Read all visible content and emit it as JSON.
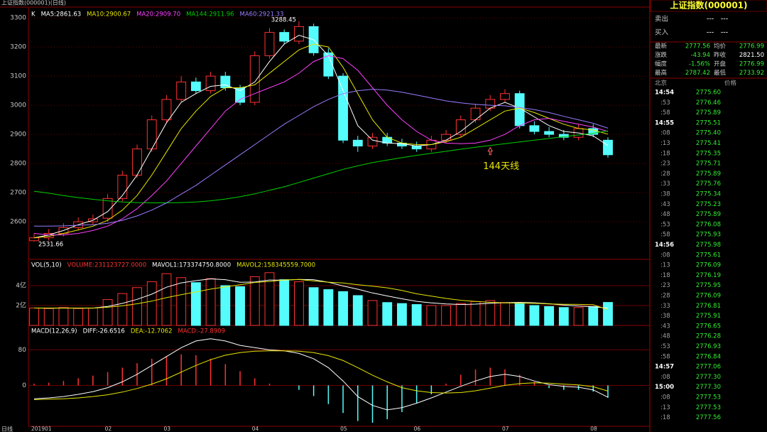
{
  "window": {
    "title": "上证指数(000001)(日线)",
    "footer": "日线"
  },
  "chart_data": [
    {
      "type": "candlestick",
      "title": "K",
      "categories": [
        "201901",
        null,
        null,
        null,
        null,
        "02",
        null,
        null,
        null,
        "03",
        null,
        null,
        null,
        null,
        null,
        "04",
        null,
        null,
        null,
        null,
        null,
        "05",
        null,
        null,
        null,
        null,
        "06",
        null,
        null,
        null,
        null,
        null,
        "07",
        null,
        null,
        null,
        null,
        null,
        "08",
        null
      ],
      "open": [
        2535,
        2545,
        2560,
        2580,
        2600,
        2612,
        2680,
        2760,
        2850,
        2950,
        3020,
        3080,
        3050,
        3100,
        3060,
        3010,
        3170,
        3250,
        3220,
        3270,
        3180,
        3100,
        2880,
        2860,
        2890,
        2870,
        2860,
        2850,
        2880,
        2900,
        2950,
        2990,
        3020,
        3040,
        2930,
        2910,
        2900,
        2890,
        2920,
        2880
      ],
      "high": [
        2560,
        2575,
        2595,
        2615,
        2625,
        2695,
        2775,
        2865,
        2965,
        3035,
        3100,
        3095,
        3115,
        3115,
        3070,
        3185,
        3265,
        3260,
        3288.45,
        3280,
        3195,
        3110,
        2895,
        2905,
        2905,
        2885,
        2875,
        2895,
        2915,
        2965,
        3005,
        3035,
        3055,
        3050,
        2945,
        2925,
        2915,
        2935,
        2935,
        2890
      ],
      "low": [
        2531.66,
        2535,
        2550,
        2570,
        2590,
        2600,
        2670,
        2750,
        2840,
        2940,
        3010,
        3040,
        3040,
        3050,
        3000,
        3000,
        3160,
        3210,
        3210,
        3170,
        3090,
        2870,
        2840,
        2850,
        2860,
        2850,
        2840,
        2840,
        2870,
        2890,
        2940,
        2980,
        3010,
        2920,
        2900,
        2890,
        2880,
        2880,
        2890,
        2820
      ],
      "close": [
        2545,
        2560,
        2580,
        2600,
        2610,
        2680,
        2760,
        2850,
        2950,
        3020,
        3080,
        3050,
        3100,
        3060,
        3010,
        3170,
        3250,
        3220,
        3270,
        3180,
        3100,
        2880,
        2860,
        2890,
        2870,
        2860,
        2850,
        2880,
        2900,
        2950,
        2990,
        3020,
        3040,
        2930,
        2910,
        2900,
        2890,
        2920,
        2900,
        2830
      ],
      "up_color": "#ff3232",
      "down_color": "#54fcfc",
      "series": [
        {
          "name": "MA5:2861.63",
          "color": "#ffffff",
          "values": [
            2545,
            2555,
            2570,
            2590,
            2605,
            2635,
            2690,
            2760,
            2850,
            2940,
            3010,
            3040,
            3065,
            3070,
            3050,
            3080,
            3150,
            3210,
            3240,
            3225,
            3170,
            3050,
            2930,
            2880,
            2870,
            2868,
            2860,
            2865,
            2880,
            2910,
            2950,
            2990,
            3010,
            2990,
            2960,
            2930,
            2910,
            2905,
            2895,
            2861.63
          ]
        },
        {
          "name": "MA10:2900.67",
          "color": "#e6e600",
          "values": [
            2545,
            2550,
            2560,
            2572,
            2585,
            2605,
            2640,
            2690,
            2760,
            2840,
            2920,
            2980,
            3030,
            3060,
            3060,
            3070,
            3110,
            3150,
            3190,
            3210,
            3200,
            3130,
            3040,
            2950,
            2890,
            2870,
            2865,
            2865,
            2875,
            2890,
            2920,
            2950,
            2980,
            2990,
            2975,
            2955,
            2935,
            2920,
            2915,
            2900.67
          ]
        },
        {
          "name": "MA20:2909.70",
          "color": "#ff40ff",
          "values": [
            2560,
            2555,
            2555,
            2560,
            2570,
            2585,
            2610,
            2645,
            2690,
            2740,
            2800,
            2860,
            2920,
            2980,
            3020,
            3040,
            3060,
            3080,
            3110,
            3150,
            3170,
            3160,
            3120,
            3060,
            3000,
            2950,
            2910,
            2880,
            2870,
            2868,
            2870,
            2880,
            2900,
            2930,
            2950,
            2955,
            2945,
            2935,
            2925,
            2909.7
          ]
        },
        {
          "name": "MA144:2911.96",
          "color": "#00d000",
          "values": [
            2705,
            2698,
            2690,
            2683,
            2677,
            2672,
            2668,
            2666,
            2665,
            2665,
            2666,
            2668,
            2672,
            2678,
            2686,
            2696,
            2708,
            2720,
            2735,
            2750,
            2765,
            2780,
            2792,
            2803,
            2812,
            2820,
            2828,
            2835,
            2842,
            2849,
            2856,
            2862,
            2868,
            2874,
            2880,
            2886,
            2892,
            2898,
            2904,
            2911.96
          ]
        },
        {
          "name": "MA60:2921.33",
          "color": "#9b7bff",
          "values": [
            2585,
            2585,
            2586,
            2588,
            2590,
            2595,
            2605,
            2620,
            2640,
            2665,
            2695,
            2725,
            2760,
            2795,
            2830,
            2865,
            2900,
            2935,
            2965,
            2995,
            3020,
            3040,
            3050,
            3055,
            3052,
            3045,
            3035,
            3025,
            3015,
            3008,
            3003,
            3000,
            2998,
            2992,
            2985,
            2975,
            2962,
            2950,
            2938,
            2921.33
          ]
        }
      ],
      "annotations": [
        "3288.45",
        "2531.66",
        "144天线"
      ],
      "ylim": [
        2471,
        3332
      ],
      "yticks": [
        2600,
        2700,
        2800,
        2900,
        3000,
        3100,
        3200,
        3300
      ],
      "grid": true
    },
    {
      "type": "combo",
      "title": "VOL(5,10)",
      "series": [
        {
          "name": "VOLUME:231123727.0000",
          "type": "bar",
          "color": "#ff3232",
          "down_color": "#54fcfc",
          "values": [
            1.75,
            1.7,
            1.8,
            1.7,
            1.75,
            2.6,
            3.2,
            3.8,
            4.4,
            5.2,
            4.8,
            4.3,
            4.7,
            4.0,
            3.9,
            4.9,
            5.3,
            4.6,
            4.4,
            3.8,
            3.6,
            3.4,
            3.0,
            2.5,
            2.3,
            2.2,
            2.1,
            2.0,
            2.0,
            2.2,
            2.4,
            2.5,
            2.3,
            2.2,
            2.0,
            1.9,
            1.8,
            1.8,
            1.9,
            2.31123727
          ]
        },
        {
          "name": "MAVOL1:173374750.8000",
          "type": "line",
          "color": "#ffffff",
          "values": [
            1.75,
            1.73,
            1.75,
            1.74,
            1.74,
            1.91,
            2.21,
            2.62,
            3.14,
            3.84,
            4.28,
            4.5,
            4.68,
            4.6,
            4.34,
            4.36,
            4.56,
            4.54,
            4.62,
            4.6,
            4.34,
            3.96,
            3.64,
            3.26,
            2.96,
            2.68,
            2.42,
            2.26,
            2.16,
            2.1,
            2.14,
            2.22,
            2.28,
            2.32,
            2.28,
            2.18,
            2.04,
            1.94,
            1.88,
            1.733747508
          ]
        },
        {
          "name": "MAVOL2:158345559.7000",
          "type": "line",
          "color": "#e6e600",
          "values": [
            1.75,
            1.74,
            1.74,
            1.74,
            1.74,
            1.83,
            1.97,
            2.18,
            2.44,
            2.79,
            3.09,
            3.36,
            3.65,
            3.87,
            4.09,
            4.32,
            4.42,
            4.57,
            4.61,
            4.47,
            4.35,
            4.26,
            4.09,
            3.94,
            3.78,
            3.51,
            3.18,
            2.95,
            2.71,
            2.53,
            2.41,
            2.32,
            2.27,
            2.24,
            2.22,
            2.16,
            2.13,
            2.11,
            2.08,
            1.583455597
          ]
        }
      ],
      "ylim": [
        0,
        6.64
      ],
      "yticks": [
        {
          "value": 2,
          "label": "2亿"
        },
        {
          "value": 4,
          "label": "4亿"
        }
      ],
      "grid": true
    },
    {
      "type": "combo",
      "title": "MACD(12,26,9)",
      "series": [
        {
          "name": "DIFF:-26.6516",
          "type": "line",
          "color": "#ffffff",
          "values": [
            -30,
            -28,
            -25,
            -20,
            -14,
            -5,
            8,
            25,
            45,
            65,
            85,
            100,
            105,
            100,
            90,
            85,
            80,
            78,
            72,
            60,
            40,
            10,
            -25,
            -45,
            -55,
            -50,
            -40,
            -28,
            -15,
            -2,
            10,
            20,
            25,
            20,
            10,
            2,
            -2,
            -4,
            -10,
            -26.6516
          ]
        },
        {
          "name": "DEA:-12.7062",
          "type": "line",
          "color": "#e6e600",
          "values": [
            -32,
            -31,
            -30,
            -28,
            -25,
            -21,
            -15,
            -7,
            3,
            15,
            30,
            45,
            58,
            68,
            74,
            77,
            78,
            78,
            77,
            74,
            67,
            56,
            40,
            23,
            8,
            -5,
            -12,
            -16,
            -17,
            -16,
            -12,
            -6,
            0,
            4,
            6,
            5,
            3,
            1,
            -3,
            -12.7062
          ]
        },
        {
          "name": "MACD:-27.8909",
          "type": "bar",
          "color": "#ff3232",
          "down_color": "#54fcfc",
          "values": [
            4,
            6,
            10,
            16,
            22,
            30,
            40,
            50,
            60,
            66,
            70,
            68,
            60,
            48,
            32,
            16,
            4,
            0,
            -10,
            -24,
            -42,
            -62,
            -80,
            -84,
            -76,
            -60,
            -40,
            -20,
            4,
            24,
            36,
            40,
            36,
            24,
            8,
            -6,
            -10,
            -10,
            -14,
            -27.8909
          ]
        }
      ],
      "ylim": [
        -92,
        135
      ],
      "yticks": [
        0,
        80
      ],
      "grid": true
    }
  ],
  "quote": {
    "title": "上证指数(000001)",
    "orders": [
      [
        "卖出",
        "---",
        "---"
      ],
      [
        "买入",
        "---",
        "---"
      ]
    ],
    "stats": [
      [
        "最新",
        "2777.56",
        "均价",
        "2776.99"
      ],
      [
        "涨跌",
        "-43.94",
        "昨收",
        "2821.50"
      ],
      [
        "幅度",
        "-1.56%",
        "开盘",
        "2776.99"
      ],
      [
        "最高",
        "2787.42",
        "最低",
        "2733.92"
      ]
    ]
  },
  "ticks_header": [
    "北京",
    "价格"
  ],
  "ticks": [
    {
      "time": "14:54",
      "price": "2775.60"
    },
    {
      "time": ":53",
      "price": "2776.46"
    },
    {
      "time": ":58",
      "price": "2775.89"
    },
    {
      "time": "14:55",
      "price": "2775.51"
    },
    {
      "time": ":08",
      "price": "2775.40"
    },
    {
      "time": ":13",
      "price": "2775.41"
    },
    {
      "time": ":18",
      "price": "2775.35"
    },
    {
      "time": ":23",
      "price": "2775.71"
    },
    {
      "time": ":28",
      "price": "2775.89"
    },
    {
      "time": ":33",
      "price": "2775.76"
    },
    {
      "time": ":38",
      "price": "2775.34"
    },
    {
      "time": ":43",
      "price": "2775.23"
    },
    {
      "time": ":48",
      "price": "2775.89"
    },
    {
      "time": ":53",
      "price": "2776.08"
    },
    {
      "time": ":58",
      "price": "2775.93"
    },
    {
      "time": "14:56",
      "price": "2775.98"
    },
    {
      "time": ":08",
      "price": "2775.61"
    },
    {
      "time": ":13",
      "price": "2776.09"
    },
    {
      "time": ":18",
      "price": "2776.19"
    },
    {
      "time": ":23",
      "price": "2775.95"
    },
    {
      "time": ":28",
      "price": "2776.09"
    },
    {
      "time": ":33",
      "price": "2776.81"
    },
    {
      "time": ":38",
      "price": "2775.91"
    },
    {
      "time": ":43",
      "price": "2776.65"
    },
    {
      "time": ":48",
      "price": "2776.28"
    },
    {
      "time": ":53",
      "price": "2776.93"
    },
    {
      "time": ":58",
      "price": "2776.84"
    },
    {
      "time": "14:57",
      "price": "2777.06"
    },
    {
      "time": ":08",
      "price": "2777.30"
    },
    {
      "time": "15:00",
      "price": "2777.30"
    },
    {
      "time": ":08",
      "price": "2777.53"
    },
    {
      "time": ":13",
      "price": "2777.53"
    },
    {
      "time": ":18",
      "price": "2777.56"
    }
  ]
}
